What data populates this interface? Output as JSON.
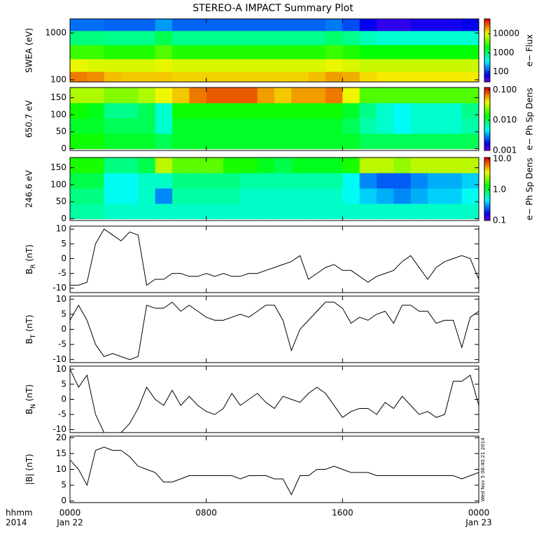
{
  "chart_data": [
    {
      "type": "heatmap",
      "title": "STEREO-A IMPACT Summary Plot",
      "ylabel": "SWEA (eV)",
      "ylog": true,
      "ylim": [
        90,
        2000
      ],
      "yticks": [
        100,
        1000
      ],
      "xlim": [
        0,
        24
      ],
      "xbins": [
        0,
        1,
        2,
        3,
        4,
        5,
        6,
        7,
        8,
        9,
        10,
        11,
        12,
        13,
        14,
        15,
        16,
        17,
        18,
        19,
        20,
        21,
        22,
        23,
        24
      ],
      "ybins": [
        90,
        150,
        280,
        560,
        1120,
        2000
      ],
      "values": [
        [
          25000,
          22000,
          16000,
          15000,
          15000,
          15000,
          14000,
          14000,
          14000,
          14000,
          14000,
          14000,
          14000,
          14000,
          16000,
          20000,
          18000,
          13000,
          12000,
          12000,
          12000,
          12000,
          12000,
          12000
        ],
        [
          10000,
          9000,
          9000,
          9000,
          9000,
          10000,
          9000,
          9000,
          9000,
          9000,
          9000,
          9000,
          9000,
          9000,
          9000,
          10000,
          9000,
          8000,
          8000,
          8000,
          8000,
          8000,
          8000,
          8000
        ],
        [
          3000,
          3000,
          2500,
          2500,
          2500,
          3500,
          2500,
          2500,
          2500,
          2500,
          2500,
          2500,
          2500,
          2500,
          2500,
          3000,
          2500,
          2000,
          2000,
          2000,
          2000,
          2000,
          2000,
          2000
        ],
        [
          900,
          900,
          800,
          800,
          800,
          1200,
          800,
          800,
          800,
          800,
          800,
          800,
          800,
          800,
          800,
          1000,
          800,
          600,
          500,
          500,
          500,
          500,
          500,
          500
        ],
        [
          150,
          150,
          140,
          140,
          140,
          200,
          140,
          140,
          140,
          140,
          140,
          140,
          140,
          140,
          140,
          160,
          120,
          70,
          50,
          50,
          60,
          60,
          60,
          70
        ]
      ],
      "colorbar": {
        "label": "e− Flux",
        "log": true,
        "lim": [
          30,
          60000
        ],
        "ticks": [
          100,
          1000,
          10000
        ]
      }
    },
    {
      "type": "heatmap",
      "ylabel": "650.7 eV",
      "ylog": false,
      "ylim": [
        -5,
        180
      ],
      "yticks": [
        0,
        50,
        100,
        150
      ],
      "xlim": [
        0,
        24
      ],
      "xbins": [
        0,
        1,
        2,
        3,
        4,
        5,
        6,
        7,
        8,
        9,
        10,
        11,
        12,
        13,
        14,
        15,
        16,
        17,
        18,
        19,
        20,
        21,
        22,
        23,
        24
      ],
      "ybins": [
        0,
        45,
        90,
        135,
        180
      ],
      "values": [
        [
          0.015,
          0.015,
          0.012,
          0.012,
          0.012,
          0.01,
          0.012,
          0.012,
          0.012,
          0.012,
          0.012,
          0.012,
          0.012,
          0.012,
          0.012,
          0.012,
          0.012,
          0.01,
          0.01,
          0.01,
          0.01,
          0.01,
          0.01,
          0.01
        ],
        [
          0.012,
          0.012,
          0.01,
          0.01,
          0.01,
          0.006,
          0.012,
          0.012,
          0.012,
          0.012,
          0.012,
          0.012,
          0.012,
          0.012,
          0.012,
          0.012,
          0.01,
          0.007,
          0.006,
          0.005,
          0.006,
          0.006,
          0.006,
          0.007
        ],
        [
          0.015,
          0.013,
          0.008,
          0.008,
          0.01,
          0.006,
          0.015,
          0.015,
          0.015,
          0.015,
          0.015,
          0.015,
          0.015,
          0.015,
          0.015,
          0.015,
          0.012,
          0.008,
          0.006,
          0.005,
          0.006,
          0.006,
          0.006,
          0.008
        ],
        [
          0.03,
          0.03,
          0.025,
          0.025,
          0.03,
          0.04,
          0.05,
          0.07,
          0.08,
          0.08,
          0.08,
          0.06,
          0.05,
          0.06,
          0.06,
          0.07,
          0.04,
          0.02,
          0.02,
          0.02,
          0.02,
          0.02,
          0.02,
          0.02
        ]
      ],
      "colorbar": {
        "label": "e− Ph Sp Dens",
        "log": true,
        "lim": [
          0.001,
          0.12
        ],
        "ticks": [
          0.001,
          {
            "value": 0.01,
            "label": "0.010"
          },
          {
            "value": 0.1,
            "label": "0.100"
          }
        ]
      }
    },
    {
      "type": "heatmap",
      "ylabel": "246.6 eV",
      "ylog": false,
      "ylim": [
        -5,
        180
      ],
      "yticks": [
        0,
        50,
        100,
        150
      ],
      "xlim": [
        0,
        24
      ],
      "xbins": [
        0,
        1,
        2,
        3,
        4,
        5,
        6,
        7,
        8,
        9,
        10,
        11,
        12,
        13,
        14,
        15,
        16,
        17,
        18,
        19,
        20,
        21,
        22,
        23,
        24
      ],
      "ybins": [
        0,
        45,
        90,
        135,
        180
      ],
      "values": [
        [
          0.7,
          0.7,
          0.6,
          0.6,
          0.6,
          0.6,
          0.6,
          0.6,
          0.6,
          0.6,
          0.6,
          0.6,
          0.6,
          0.6,
          0.6,
          0.6,
          0.6,
          0.6,
          0.6,
          0.6,
          0.6,
          0.6,
          0.6,
          0.6
        ],
        [
          0.8,
          0.8,
          0.5,
          0.5,
          0.6,
          0.3,
          0.7,
          0.7,
          0.7,
          0.7,
          0.6,
          0.6,
          0.6,
          0.6,
          0.6,
          0.6,
          0.5,
          0.4,
          0.35,
          0.3,
          0.35,
          0.4,
          0.4,
          0.5
        ],
        [
          1,
          1,
          0.5,
          0.5,
          0.6,
          0.6,
          0.8,
          0.8,
          0.8,
          0.8,
          0.7,
          0.7,
          0.7,
          0.7,
          0.7,
          0.7,
          0.5,
          0.3,
          0.25,
          0.25,
          0.3,
          0.35,
          0.35,
          0.4
        ],
        [
          1.5,
          1.5,
          0.8,
          0.8,
          1,
          3,
          2,
          2,
          2,
          1.5,
          1.5,
          1.2,
          1,
          1.2,
          1.2,
          1.2,
          1.5,
          3,
          3,
          2.5,
          3,
          3,
          3,
          3
        ]
      ],
      "colorbar": {
        "label": "e− Ph Sp Dens",
        "log": true,
        "lim": [
          0.1,
          11
        ],
        "ticks": [
          0.1,
          {
            "value": 1,
            "label": "1.0"
          },
          {
            "value": 10,
            "label": "10.0"
          }
        ]
      }
    },
    {
      "type": "line",
      "ylabel_parts": [
        "B",
        "R",
        " (nT)"
      ],
      "color": "#000000",
      "ylim": [
        -11.5,
        11
      ],
      "yticks": [
        -10,
        -5,
        0,
        5,
        10
      ],
      "xlim": [
        0,
        24
      ],
      "x": [
        0,
        0.5,
        1,
        1.5,
        2,
        2.5,
        3,
        3.5,
        4,
        4.5,
        5,
        5.5,
        6,
        6.5,
        7,
        7.5,
        8,
        8.5,
        9,
        9.5,
        10,
        10.5,
        11,
        11.5,
        12,
        12.5,
        13,
        13.5,
        14,
        14.5,
        15,
        15.5,
        16,
        16.5,
        17,
        17.5,
        18,
        18.5,
        19,
        19.5,
        20,
        20.5,
        21,
        21.5,
        22,
        22.5,
        23,
        23.5,
        24
      ],
      "values": [
        -9,
        -9,
        -8,
        5,
        10,
        8,
        6,
        9,
        8,
        -9,
        -7,
        -7,
        -5,
        -5,
        -6,
        -6,
        -5,
        -6,
        -5,
        -6,
        -6,
        -5,
        -5,
        -4,
        -3,
        -2,
        -1,
        1,
        -7,
        -5,
        -3,
        -2,
        -4,
        -4,
        -6,
        -8,
        -6,
        -5,
        -4,
        -1,
        1,
        -3,
        -7,
        -3,
        -1,
        0,
        1,
        0,
        -7
      ]
    },
    {
      "type": "line",
      "ylabel_parts": [
        "B",
        "T",
        " (nT)"
      ],
      "color": "#000000",
      "ylim": [
        -11,
        11
      ],
      "yticks": [
        -10,
        -5,
        0,
        5,
        10
      ],
      "xlim": [
        0,
        24
      ],
      "x": [
        0,
        0.5,
        1,
        1.5,
        2,
        2.5,
        3,
        3.5,
        4,
        4.5,
        5,
        5.5,
        6,
        6.5,
        7,
        7.5,
        8,
        8.5,
        9,
        9.5,
        10,
        10.5,
        11,
        11.5,
        12,
        12.5,
        13,
        13.5,
        14,
        14.5,
        15,
        15.5,
        16,
        16.5,
        17,
        17.5,
        18,
        18.5,
        19,
        19.5,
        20,
        20.5,
        21,
        21.5,
        22,
        22.5,
        23,
        23.5,
        24
      ],
      "values": [
        3,
        8,
        3,
        -5,
        -9,
        -8,
        -9,
        -10,
        -9,
        8,
        7,
        7,
        9,
        6,
        8,
        6,
        4,
        3,
        3,
        4,
        5,
        4,
        6,
        8,
        8,
        3,
        -7,
        0,
        3,
        6,
        9,
        9,
        7,
        2,
        4,
        3,
        5,
        6,
        2,
        8,
        8,
        6,
        6,
        2,
        3,
        3,
        -6,
        4,
        6
      ]
    },
    {
      "type": "line",
      "ylabel_parts": [
        "B",
        "N",
        " (nT)"
      ],
      "color": "#000000",
      "ylim": [
        -11,
        11
      ],
      "yticks": [
        -10,
        -5,
        0,
        5,
        10
      ],
      "xlim": [
        0,
        24
      ],
      "x": [
        0,
        0.5,
        1,
        1.5,
        2,
        2.5,
        3,
        3.5,
        4,
        4.5,
        5,
        5.5,
        6,
        6.5,
        7,
        7.5,
        8,
        8.5,
        9,
        9.5,
        10,
        10.5,
        11,
        11.5,
        12,
        12.5,
        13,
        13.5,
        14,
        14.5,
        15,
        15.5,
        16,
        16.5,
        17,
        17.5,
        18,
        18.5,
        19,
        19.5,
        20,
        20.5,
        21,
        21.5,
        22,
        22.5,
        23,
        23.5,
        24
      ],
      "values": [
        10,
        4,
        8,
        -5,
        -11,
        -11,
        -11,
        -8,
        -3,
        4,
        0,
        -2,
        3,
        -2,
        1,
        -2,
        -4,
        -5,
        -3,
        2,
        -2,
        0,
        2,
        -1,
        -3,
        1,
        0,
        -1,
        2,
        4,
        2,
        -2,
        -6,
        -4,
        -3,
        -3,
        -5,
        -1,
        -3,
        1,
        -2,
        -5,
        -4,
        -6,
        -5,
        6,
        6,
        8,
        -2
      ]
    },
    {
      "type": "line",
      "ylabel_parts": [
        "|B| (nT)"
      ],
      "color": "#000000",
      "ylim": [
        -0.5,
        20.5
      ],
      "yticks": [
        0,
        5,
        10,
        15,
        20
      ],
      "xlim": [
        0,
        24
      ],
      "x": [
        0,
        0.5,
        1,
        1.5,
        2,
        2.5,
        3,
        3.5,
        4,
        4.5,
        5,
        5.5,
        6,
        6.5,
        7,
        7.5,
        8,
        8.5,
        9,
        9.5,
        10,
        10.5,
        11,
        11.5,
        12,
        12.5,
        13,
        13.5,
        14,
        14.5,
        15,
        15.5,
        16,
        16.5,
        17,
        17.5,
        18,
        18.5,
        19,
        19.5,
        20,
        20.5,
        21,
        21.5,
        22,
        22.5,
        23,
        23.5,
        24
      ],
      "values": [
        13,
        10,
        5,
        16,
        17,
        16,
        16,
        14,
        11,
        10,
        9,
        6,
        6,
        7,
        8,
        8,
        8,
        8,
        8,
        8,
        7,
        8,
        8,
        8,
        7,
        7,
        2,
        8,
        8,
        10,
        10,
        11,
        10,
        9,
        9,
        9,
        8,
        8,
        8,
        8,
        8,
        8,
        8,
        8,
        8,
        8,
        7,
        8,
        9
      ],
      "xticks": [
        {
          "value": 0,
          "label": "0000"
        },
        {
          "value": 8,
          "label": "0800"
        },
        {
          "value": 16,
          "label": "1600"
        },
        {
          "value": 24,
          "label": "0000"
        }
      ],
      "xtick_dates": [
        "Jan 22",
        null,
        null,
        "Jan 23"
      ],
      "x_caption": [
        "hhmm",
        "2014"
      ],
      "timestamp": "Wed Nov  5 08:40:21 2014"
    }
  ]
}
